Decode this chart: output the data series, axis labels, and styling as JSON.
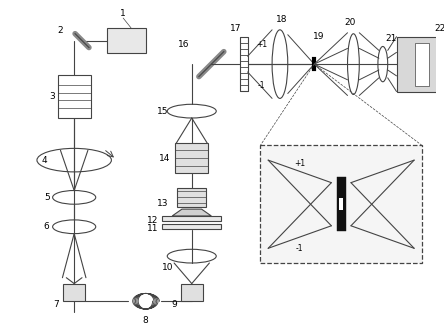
{
  "bg_color": "#ffffff",
  "line_color": "#444444",
  "lw": 0.8,
  "fig_width": 4.44,
  "fig_height": 3.33,
  "dpi": 100
}
